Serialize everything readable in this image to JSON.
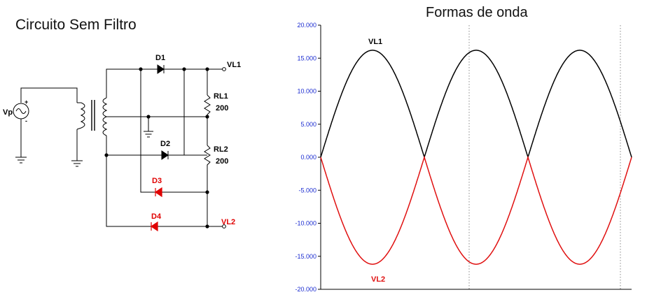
{
  "circuit": {
    "title": "Circuito Sem Filtro",
    "labels": {
      "source": "Vp",
      "source_plus": "+",
      "source_minus": "-",
      "d1": "D1",
      "d2": "D2",
      "d3": "D3",
      "d4": "D4",
      "rl1": "RL1",
      "rl1_value": "200",
      "rl2": "RL2",
      "rl2_value": "200",
      "vl1": "VL1",
      "vl2": "VL2"
    },
    "colors": {
      "wire": "#000000",
      "negative_diodes": "#e00000"
    }
  },
  "chart_data": {
    "type": "line",
    "title": "Formas de onda",
    "xlabel": "",
    "ylabel": "",
    "ylim": [
      -20,
      20
    ],
    "yticks": [
      20,
      15,
      10,
      5,
      0,
      -5,
      -10,
      -15,
      -20
    ],
    "ytick_labels": [
      "20.000",
      "15.000",
      "10.000",
      "5.000",
      "0.000",
      "-5.000",
      "-10.000",
      "-15.000",
      "-20.000"
    ],
    "half_periods": 3,
    "amplitude": 16.2,
    "grid": true,
    "series": [
      {
        "name": "VL1",
        "kind": "rectified_positive",
        "color": "#000000"
      },
      {
        "name": "VL2",
        "kind": "rectified_negative",
        "color": "#e01010"
      }
    ]
  }
}
